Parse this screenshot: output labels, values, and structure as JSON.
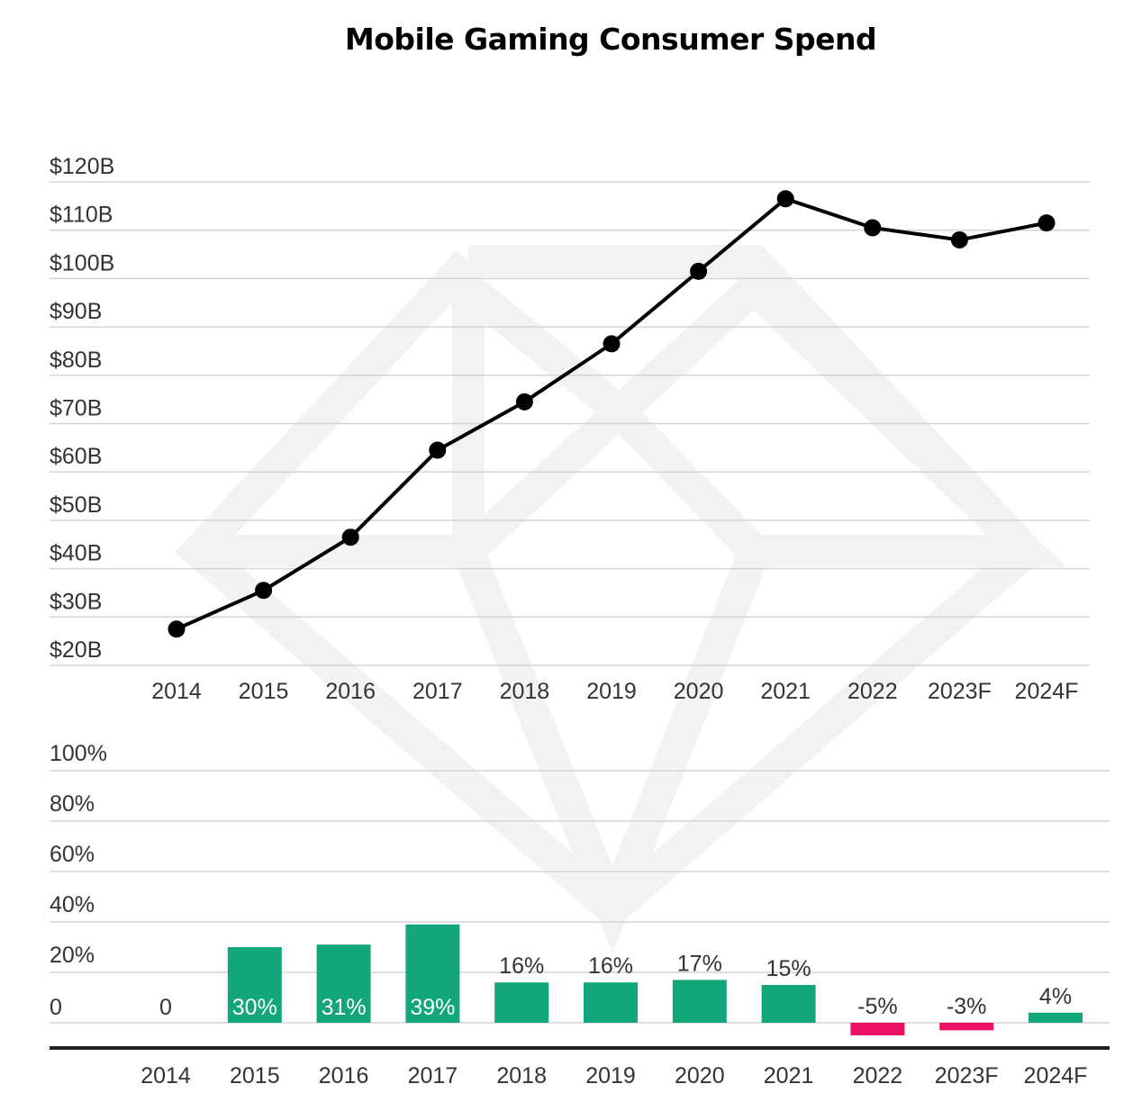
{
  "title": "Mobile Gaming Consumer Spend",
  "colors": {
    "line": "#000000",
    "positive_bar": "#12a67a",
    "negative_bar": "#ec0f63",
    "grid": "#d4d4d4",
    "axis_text": "#333333",
    "watermark": "#f1f2f4"
  },
  "chart_data": [
    {
      "id": "spend",
      "type": "line",
      "title": "Mobile Gaming Consumer Spend",
      "categories": [
        "2014",
        "2015",
        "2016",
        "2017",
        "2018",
        "2019",
        "2020",
        "2021",
        "2022",
        "2023F",
        "2024F"
      ],
      "values": [
        27.5,
        35.5,
        46.5,
        64.5,
        74.5,
        86.5,
        101.5,
        116.5,
        110.5,
        108,
        111.5
      ],
      "y_ticks": [
        {
          "value": 20,
          "label": "$20B"
        },
        {
          "value": 30,
          "label": "$30B"
        },
        {
          "value": 40,
          "label": "$40B"
        },
        {
          "value": 50,
          "label": "$50B"
        },
        {
          "value": 60,
          "label": "$60B"
        },
        {
          "value": 70,
          "label": "$70B"
        },
        {
          "value": 80,
          "label": "$80B"
        },
        {
          "value": 90,
          "label": "$90B"
        },
        {
          "value": 100,
          "label": "$100B"
        },
        {
          "value": 110,
          "label": "$110B"
        },
        {
          "value": 120,
          "label": "$120B"
        }
      ],
      "ylim": [
        20,
        120
      ],
      "grid": true
    },
    {
      "id": "growth",
      "type": "bar",
      "categories": [
        "2014",
        "2015",
        "2016",
        "2017",
        "2018",
        "2019",
        "2020",
        "2021",
        "2022",
        "2023F",
        "2024F"
      ],
      "values": [
        0,
        30,
        31,
        39,
        16,
        16,
        17,
        15,
        -5,
        -3,
        4
      ],
      "value_labels": [
        "0",
        "30%",
        "31%",
        "39%",
        "16%",
        "16%",
        "17%",
        "15%",
        "-5%",
        "-3%",
        "4%"
      ],
      "y_ticks": [
        {
          "value": 0,
          "label": "0"
        },
        {
          "value": 20,
          "label": "20%"
        },
        {
          "value": 40,
          "label": "40%"
        },
        {
          "value": 60,
          "label": "60%"
        },
        {
          "value": 80,
          "label": "80%"
        },
        {
          "value": 100,
          "label": "100%"
        }
      ],
      "ylim": [
        -10,
        100
      ],
      "grid": true
    }
  ]
}
